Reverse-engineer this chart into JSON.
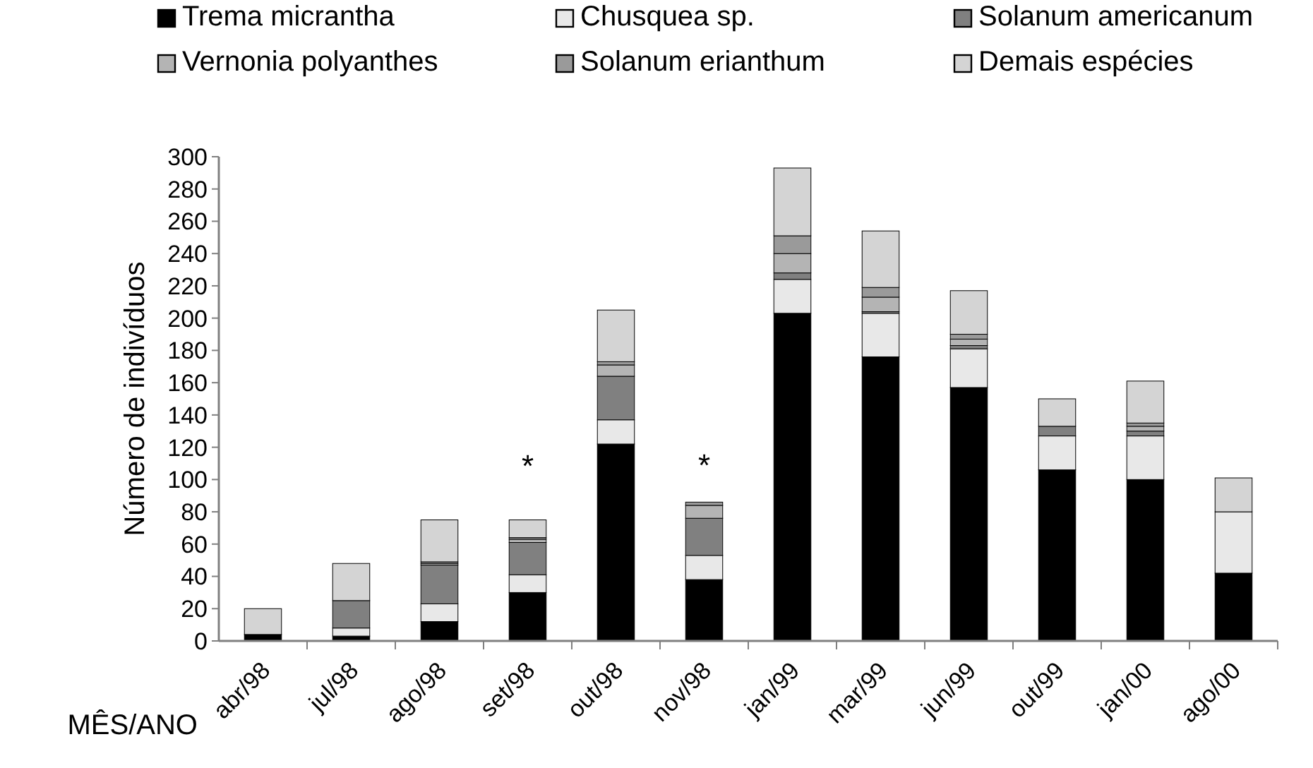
{
  "chart_data": {
    "type": "bar",
    "stacked": true,
    "xlabel": "MÊS/ANO",
    "ylabel": "Número de indivíduos",
    "categories": [
      "abr/98",
      "jul/98",
      "ago/98",
      "set/98",
      "out/98",
      "nov/98",
      "jan/99",
      "mar/99",
      "jun/99",
      "out/99",
      "jan/00",
      "ago/00"
    ],
    "series": [
      {
        "name": "Trema micrantha",
        "color": "#000000",
        "values": [
          4,
          3,
          12,
          30,
          122,
          38,
          203,
          176,
          157,
          106,
          100,
          42
        ]
      },
      {
        "name": "Chusquea sp.",
        "color": "#e8e8e8",
        "values": [
          0,
          5,
          11,
          11,
          15,
          15,
          21,
          27,
          24,
          21,
          27,
          38
        ]
      },
      {
        "name": "Solanum americanum",
        "color": "#808080",
        "values": [
          0,
          17,
          24,
          20,
          27,
          23,
          4,
          1,
          2,
          6,
          3,
          0
        ]
      },
      {
        "name": "Vernonia polyanthes",
        "color": "#b4b4b4",
        "values": [
          0,
          0,
          1,
          2,
          7,
          8,
          12,
          9,
          4,
          0,
          3,
          0
        ]
      },
      {
        "name": "Solanum erianthum",
        "color": "#9a9a9a",
        "values": [
          0,
          0,
          1,
          1,
          2,
          2,
          11,
          6,
          3,
          0,
          2,
          0
        ]
      },
      {
        "name": "Demais espécies",
        "color": "#d4d4d4",
        "values": [
          16,
          23,
          26,
          11,
          32,
          0,
          42,
          35,
          27,
          17,
          26,
          21
        ]
      }
    ],
    "ylim": [
      0,
      300
    ],
    "yticks": [
      0,
      20,
      40,
      60,
      80,
      100,
      120,
      140,
      160,
      180,
      200,
      220,
      240,
      260,
      280,
      300
    ],
    "legend": "top",
    "grid": false,
    "annotations": [
      {
        "text": "*",
        "x": "set/98",
        "y": 75
      },
      {
        "text": "*",
        "x": "nov/98",
        "y": 86
      }
    ]
  }
}
